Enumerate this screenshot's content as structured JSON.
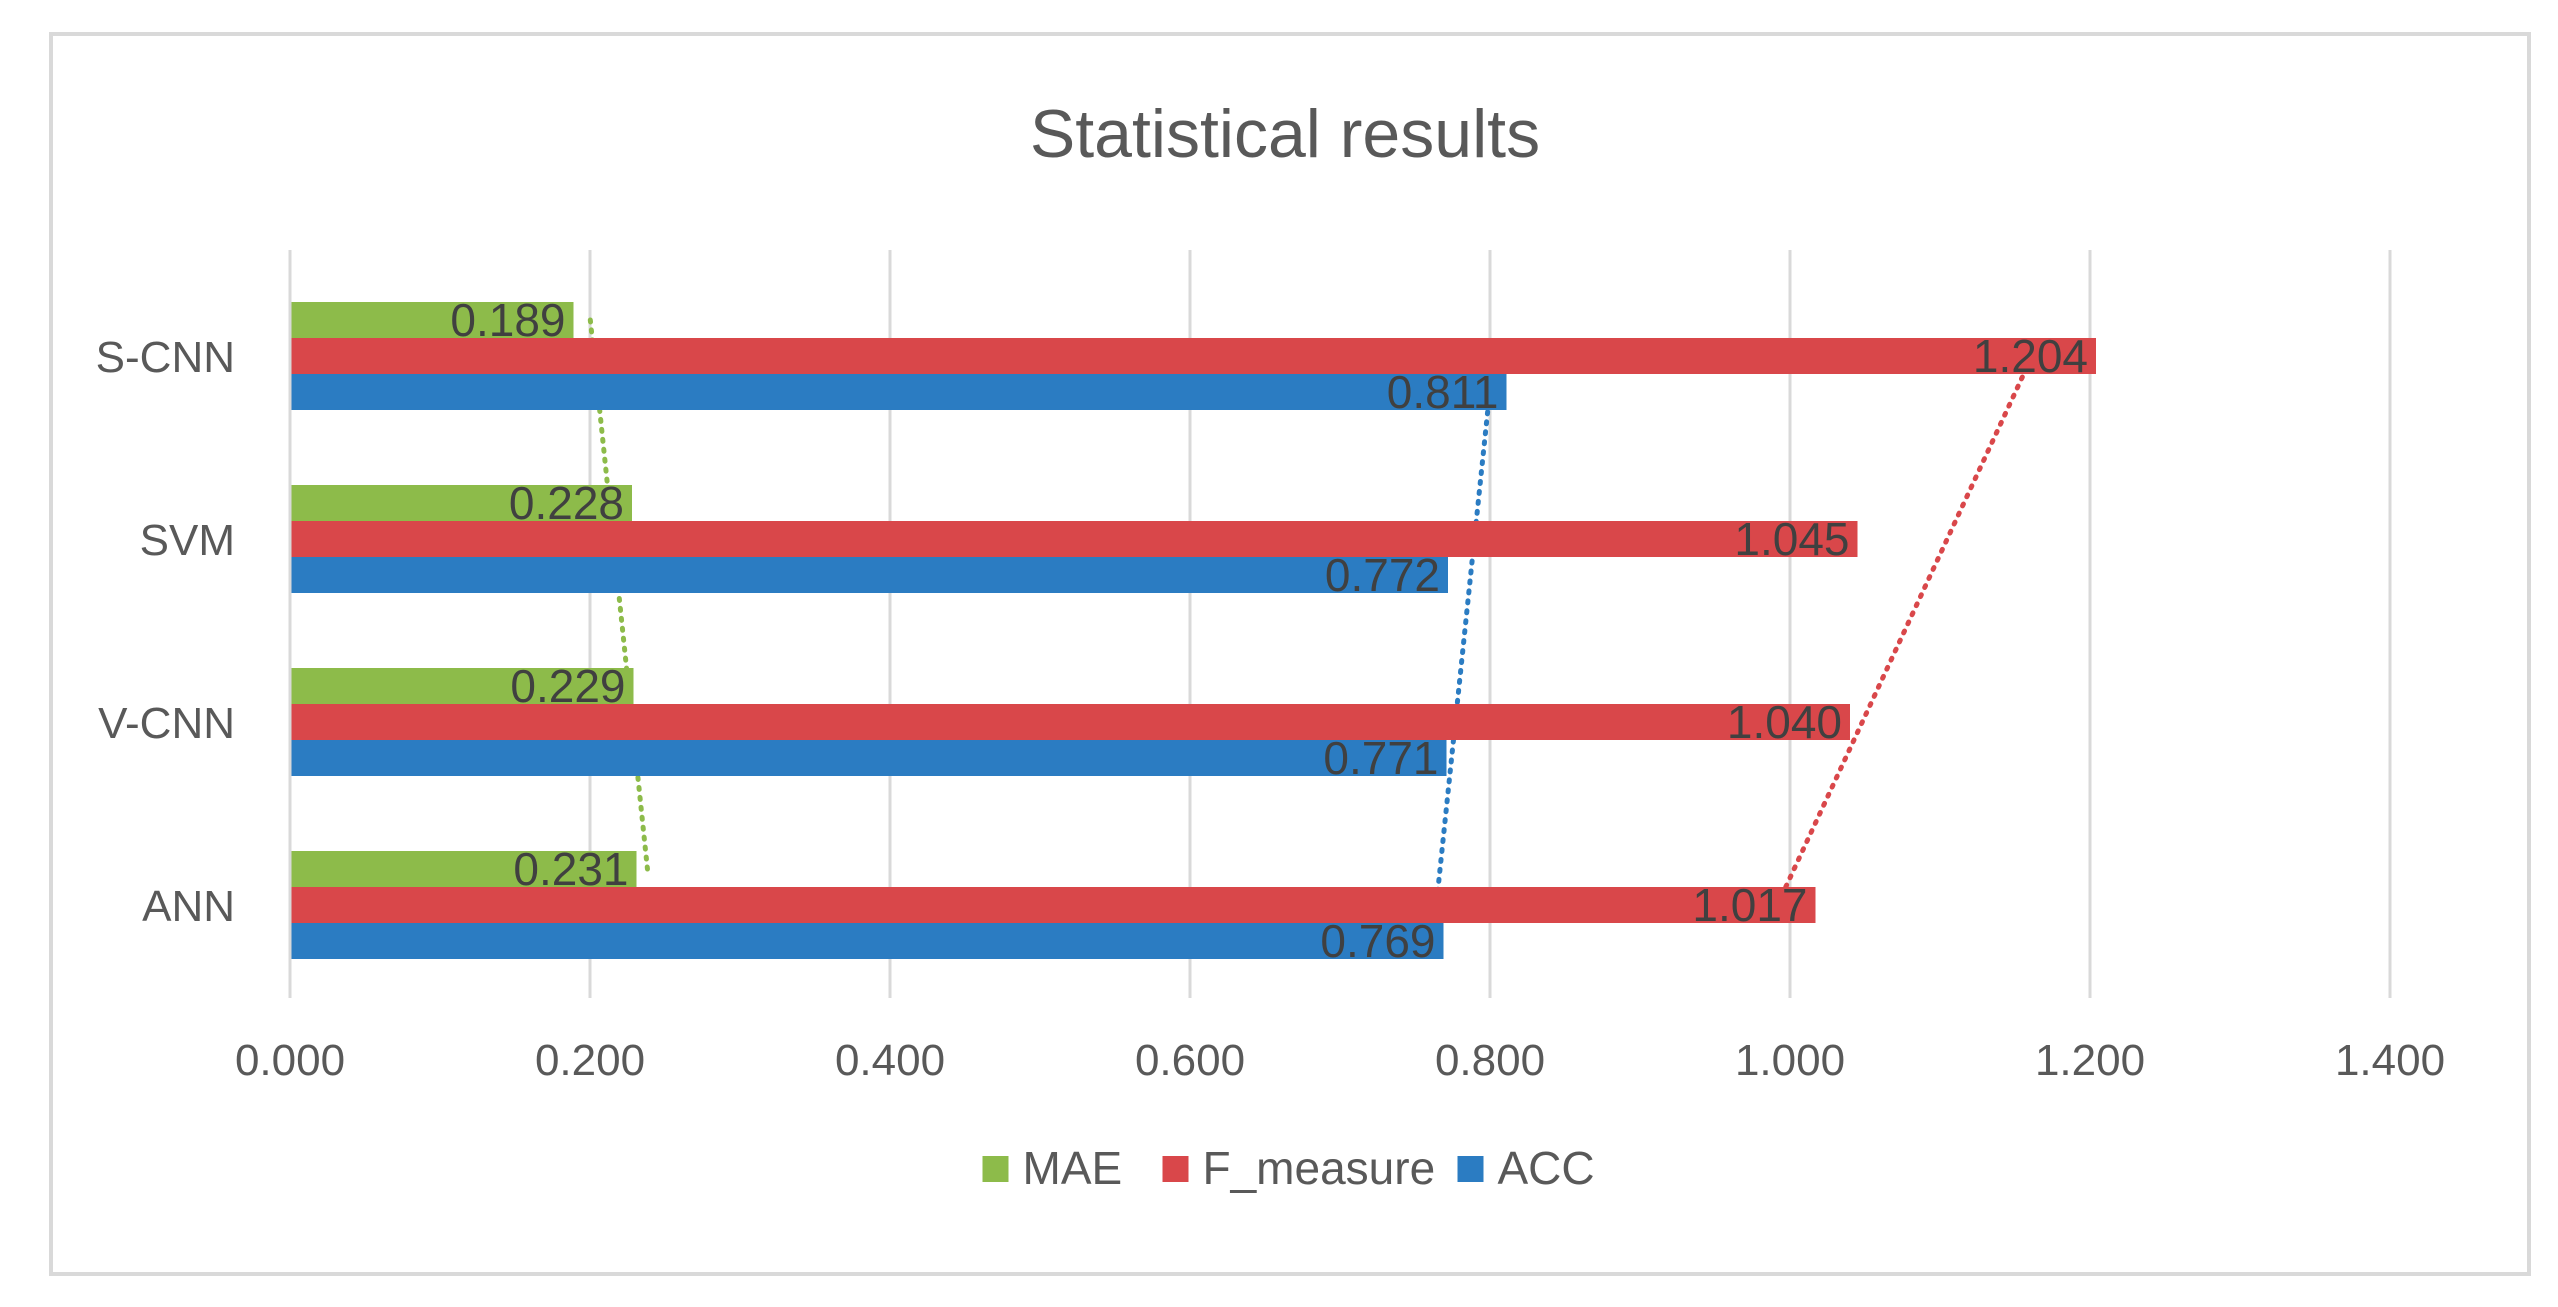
{
  "chart_data": {
    "type": "bar",
    "orientation": "horizontal",
    "title": "Statistical results",
    "categories": [
      "ANN",
      "V-CNN",
      "SVM",
      "S-CNN"
    ],
    "series": [
      {
        "name": "MAE",
        "color": "#8dbb4a",
        "values": [
          0.231,
          0.229,
          0.228,
          0.189
        ]
      },
      {
        "name": "F_measure",
        "color": "#d9474a",
        "values": [
          1.017,
          1.04,
          1.045,
          1.204
        ]
      },
      {
        "name": "ACC",
        "color": "#2b7cc2",
        "values": [
          0.769,
          0.771,
          0.772,
          0.811
        ]
      }
    ],
    "data_labels": [
      [
        "0.231",
        "0.229",
        "0.228",
        "0.189"
      ],
      [
        "1.017",
        "1.040",
        "1.045",
        "1.204"
      ],
      [
        "0.769",
        "0.771",
        "0.772",
        "0.811"
      ]
    ],
    "x_ticks": [
      "0.000",
      "0.200",
      "0.400",
      "0.600",
      "0.800",
      "1.000",
      "1.200",
      "1.400"
    ],
    "xlim": [
      0,
      1.4
    ],
    "trendlines": "linear, dotted, one per series",
    "gridlines": "vertical",
    "legend_position": "bottom"
  }
}
